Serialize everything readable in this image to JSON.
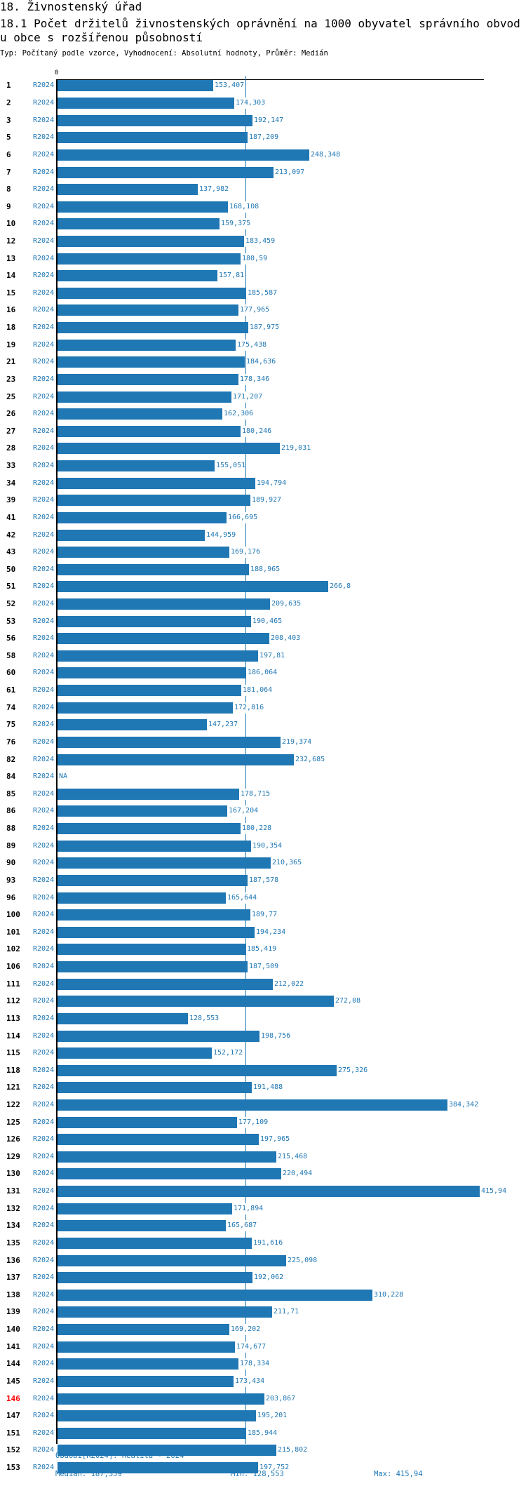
{
  "header": {
    "section_title": "18. Živnostenský úřad",
    "chart_title": "18.1 Počet držitelů živnostenských oprávnění na 1000 obyvatel správního obvodu obce s rozšířenou působností",
    "subtitle": "Typ: Počítaný podle vzorce, Vyhodnocení: Absolutní hodnoty, Průměr: Medián"
  },
  "footer": {
    "period": "Období[R2024]: Realita - 2024",
    "median": "Medián: 187,359",
    "min": "Min: 128,553",
    "max": "Max: 415,94"
  },
  "colors": {
    "bar": "#1f77b4",
    "highlight": "#ff0000"
  },
  "chart_data": {
    "type": "bar",
    "orientation": "horizontal",
    "title": "18.1 Počet držitelů živnostenských oprávnění na 1000 obyvatel správního obvodu obce s rozšířenou působností",
    "xlim": [
      0,
      415.94
    ],
    "x_tick_labels": [
      "0"
    ],
    "median": 187.359,
    "series_name": "R2024",
    "highlighted_category": "146",
    "rows": [
      {
        "id": "1",
        "period": "R2024",
        "value": 153.407,
        "label": "153,407"
      },
      {
        "id": "2",
        "period": "R2024",
        "value": 174.303,
        "label": "174,303"
      },
      {
        "id": "3",
        "period": "R2024",
        "value": 192.147,
        "label": "192,147"
      },
      {
        "id": "5",
        "period": "R2024",
        "value": 187.209,
        "label": "187,209"
      },
      {
        "id": "6",
        "period": "R2024",
        "value": 248.348,
        "label": "248,348"
      },
      {
        "id": "7",
        "period": "R2024",
        "value": 213.097,
        "label": "213,097"
      },
      {
        "id": "8",
        "period": "R2024",
        "value": 137.982,
        "label": "137,982"
      },
      {
        "id": "9",
        "period": "R2024",
        "value": 168.108,
        "label": "168,108"
      },
      {
        "id": "10",
        "period": "R2024",
        "value": 159.375,
        "label": "159,375"
      },
      {
        "id": "12",
        "period": "R2024",
        "value": 183.459,
        "label": "183,459"
      },
      {
        "id": "13",
        "period": "R2024",
        "value": 180.59,
        "label": "180,59"
      },
      {
        "id": "14",
        "period": "R2024",
        "value": 157.81,
        "label": "157,81"
      },
      {
        "id": "15",
        "period": "R2024",
        "value": 185.587,
        "label": "185,587"
      },
      {
        "id": "16",
        "period": "R2024",
        "value": 177.965,
        "label": "177,965"
      },
      {
        "id": "18",
        "period": "R2024",
        "value": 187.975,
        "label": "187,975"
      },
      {
        "id": "19",
        "period": "R2024",
        "value": 175.438,
        "label": "175,438"
      },
      {
        "id": "21",
        "period": "R2024",
        "value": 184.636,
        "label": "184,636"
      },
      {
        "id": "23",
        "period": "R2024",
        "value": 178.346,
        "label": "178,346"
      },
      {
        "id": "25",
        "period": "R2024",
        "value": 171.207,
        "label": "171,207"
      },
      {
        "id": "26",
        "period": "R2024",
        "value": 162.306,
        "label": "162,306"
      },
      {
        "id": "27",
        "period": "R2024",
        "value": 180.246,
        "label": "180,246"
      },
      {
        "id": "28",
        "period": "R2024",
        "value": 219.031,
        "label": "219,031"
      },
      {
        "id": "33",
        "period": "R2024",
        "value": 155.051,
        "label": "155,051"
      },
      {
        "id": "34",
        "period": "R2024",
        "value": 194.794,
        "label": "194,794"
      },
      {
        "id": "39",
        "period": "R2024",
        "value": 189.927,
        "label": "189,927"
      },
      {
        "id": "41",
        "period": "R2024",
        "value": 166.695,
        "label": "166,695"
      },
      {
        "id": "42",
        "period": "R2024",
        "value": 144.959,
        "label": "144,959"
      },
      {
        "id": "43",
        "period": "R2024",
        "value": 169.176,
        "label": "169,176"
      },
      {
        "id": "50",
        "period": "R2024",
        "value": 188.965,
        "label": "188,965"
      },
      {
        "id": "51",
        "period": "R2024",
        "value": 266.8,
        "label": "266,8"
      },
      {
        "id": "52",
        "period": "R2024",
        "value": 209.635,
        "label": "209,635"
      },
      {
        "id": "53",
        "period": "R2024",
        "value": 190.465,
        "label": "190,465"
      },
      {
        "id": "56",
        "period": "R2024",
        "value": 208.403,
        "label": "208,403"
      },
      {
        "id": "58",
        "period": "R2024",
        "value": 197.81,
        "label": "197,81"
      },
      {
        "id": "60",
        "period": "R2024",
        "value": 186.064,
        "label": "186,064"
      },
      {
        "id": "61",
        "period": "R2024",
        "value": 181.064,
        "label": "181,064"
      },
      {
        "id": "74",
        "period": "R2024",
        "value": 172.816,
        "label": "172,816"
      },
      {
        "id": "75",
        "period": "R2024",
        "value": 147.237,
        "label": "147,237"
      },
      {
        "id": "76",
        "period": "R2024",
        "value": 219.374,
        "label": "219,374"
      },
      {
        "id": "82",
        "period": "R2024",
        "value": 232.685,
        "label": "232,685"
      },
      {
        "id": "84",
        "period": "R2024",
        "value": null,
        "label": "NA"
      },
      {
        "id": "85",
        "period": "R2024",
        "value": 178.715,
        "label": "178,715"
      },
      {
        "id": "86",
        "period": "R2024",
        "value": 167.204,
        "label": "167,204"
      },
      {
        "id": "88",
        "period": "R2024",
        "value": 180.228,
        "label": "180,228"
      },
      {
        "id": "89",
        "period": "R2024",
        "value": 190.354,
        "label": "190,354"
      },
      {
        "id": "90",
        "period": "R2024",
        "value": 210.365,
        "label": "210,365"
      },
      {
        "id": "93",
        "period": "R2024",
        "value": 187.578,
        "label": "187,578"
      },
      {
        "id": "96",
        "period": "R2024",
        "value": 165.644,
        "label": "165,644"
      },
      {
        "id": "100",
        "period": "R2024",
        "value": 189.77,
        "label": "189,77"
      },
      {
        "id": "101",
        "period": "R2024",
        "value": 194.234,
        "label": "194,234"
      },
      {
        "id": "102",
        "period": "R2024",
        "value": 185.419,
        "label": "185,419"
      },
      {
        "id": "106",
        "period": "R2024",
        "value": 187.509,
        "label": "187,509"
      },
      {
        "id": "111",
        "period": "R2024",
        "value": 212.022,
        "label": "212,022"
      },
      {
        "id": "112",
        "period": "R2024",
        "value": 272.08,
        "label": "272,08"
      },
      {
        "id": "113",
        "period": "R2024",
        "value": 128.553,
        "label": "128,553"
      },
      {
        "id": "114",
        "period": "R2024",
        "value": 198.756,
        "label": "198,756"
      },
      {
        "id": "115",
        "period": "R2024",
        "value": 152.172,
        "label": "152,172"
      },
      {
        "id": "118",
        "period": "R2024",
        "value": 275.326,
        "label": "275,326"
      },
      {
        "id": "121",
        "period": "R2024",
        "value": 191.488,
        "label": "191,488"
      },
      {
        "id": "122",
        "period": "R2024",
        "value": 384.342,
        "label": "384,342"
      },
      {
        "id": "125",
        "period": "R2024",
        "value": 177.109,
        "label": "177,109"
      },
      {
        "id": "126",
        "period": "R2024",
        "value": 197.965,
        "label": "197,965"
      },
      {
        "id": "129",
        "period": "R2024",
        "value": 215.468,
        "label": "215,468"
      },
      {
        "id": "130",
        "period": "R2024",
        "value": 220.494,
        "label": "220,494"
      },
      {
        "id": "131",
        "period": "R2024",
        "value": 415.94,
        "label": "415,94"
      },
      {
        "id": "132",
        "period": "R2024",
        "value": 171.894,
        "label": "171,894"
      },
      {
        "id": "134",
        "period": "R2024",
        "value": 165.687,
        "label": "165,687"
      },
      {
        "id": "135",
        "period": "R2024",
        "value": 191.616,
        "label": "191,616"
      },
      {
        "id": "136",
        "period": "R2024",
        "value": 225.098,
        "label": "225,098"
      },
      {
        "id": "137",
        "period": "R2024",
        "value": 192.062,
        "label": "192,062"
      },
      {
        "id": "138",
        "period": "R2024",
        "value": 310.228,
        "label": "310,228"
      },
      {
        "id": "139",
        "period": "R2024",
        "value": 211.71,
        "label": "211,71"
      },
      {
        "id": "140",
        "period": "R2024",
        "value": 169.202,
        "label": "169,202"
      },
      {
        "id": "141",
        "period": "R2024",
        "value": 174.677,
        "label": "174,677"
      },
      {
        "id": "144",
        "period": "R2024",
        "value": 178.334,
        "label": "178,334"
      },
      {
        "id": "145",
        "period": "R2024",
        "value": 173.434,
        "label": "173,434"
      },
      {
        "id": "146",
        "period": "R2024",
        "value": 203.867,
        "label": "203,867"
      },
      {
        "id": "147",
        "period": "R2024",
        "value": 195.201,
        "label": "195,201"
      },
      {
        "id": "151",
        "period": "R2024",
        "value": 185.944,
        "label": "185,944"
      },
      {
        "id": "152",
        "period": "R2024",
        "value": 215.802,
        "label": "215,802"
      },
      {
        "id": "153",
        "period": "R2024",
        "value": 197.752,
        "label": "197,752"
      }
    ]
  }
}
